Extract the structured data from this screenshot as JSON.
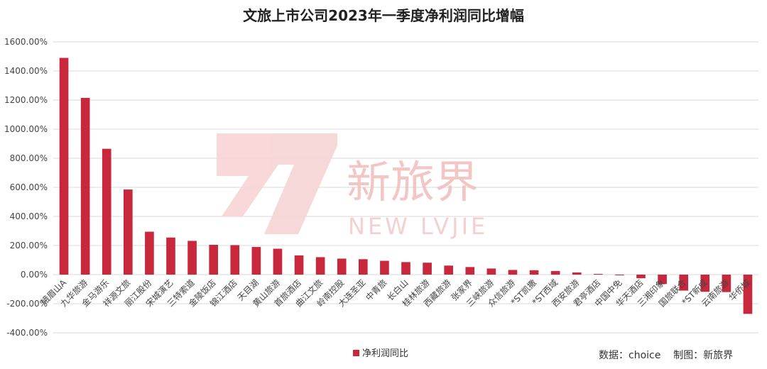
{
  "chart_data": {
    "type": "bar",
    "title": "文旅上市公司2023年一季度净利润同比增幅",
    "ylim": [
      -400,
      1600
    ],
    "yticks": [
      "1600.00%",
      "1400.00%",
      "1200.00%",
      "1000.00%",
      "800.00%",
      "600.00%",
      "400.00%",
      "200.00%",
      "0.00%",
      "-200.00%",
      "-400.00%"
    ],
    "grid": true,
    "legend_position": "bottom-left",
    "categories": [
      "峨眉山A",
      "九华旅游",
      "金马游乐",
      "祥源文旅",
      "丽江股份",
      "宋城演艺",
      "三特索道",
      "金陵饭店",
      "锦江酒店",
      "天目湖",
      "黄山旅游",
      "首旅酒店",
      "曲江文旅",
      "岭南控股",
      "大连圣亚",
      "中青旅",
      "长白山",
      "桂林旅游",
      "西藏旅游",
      "张家界",
      "三峡旅游",
      "众信旅游",
      "*ST凯撒",
      "*ST西域",
      "西安旅游",
      "君亭酒店",
      "中国中免",
      "华天酒店",
      "三湘印象",
      "国旅联合",
      "*ST新成",
      "云南旅游",
      "华侨城"
    ],
    "series": [
      {
        "name": "净利润同比",
        "color": "#c8273c",
        "values": [
          1490,
          1215,
          865,
          585,
          295,
          255,
          232,
          205,
          203,
          190,
          178,
          132,
          120,
          110,
          106,
          95,
          86,
          82,
          62,
          52,
          42,
          32,
          30,
          25,
          15,
          5,
          -5,
          -25,
          -65,
          -110,
          -118,
          -120,
          -270
        ]
      }
    ]
  },
  "legend": {
    "label": "净利润同比"
  },
  "source": {
    "text": "数据：choice    制图：新旅界"
  },
  "watermark": {
    "brand": "新旅界",
    "sub": "NEW LVJIE"
  }
}
